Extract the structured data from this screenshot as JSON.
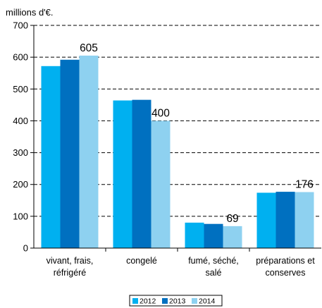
{
  "chart_data": {
    "type": "bar",
    "ylabel": "millions d'€.",
    "ylim": [
      0,
      700
    ],
    "yticks": [
      0,
      100,
      200,
      300,
      400,
      500,
      600,
      700
    ],
    "grid": true,
    "legend_position": "bottom",
    "categories": [
      [
        "vivant, frais,",
        "réfrigéré"
      ],
      [
        "congelé"
      ],
      [
        "fumé, séché,",
        "salé"
      ],
      [
        "préparations et",
        "conserves"
      ]
    ],
    "series": [
      {
        "name": "2012",
        "color": "#00b0f0",
        "values": [
          572,
          464,
          80,
          174
        ]
      },
      {
        "name": "2013",
        "color": "#0070c0",
        "values": [
          592,
          466,
          76,
          177
        ]
      },
      {
        "name": "2014",
        "color": "#8ed1f0",
        "values": [
          605,
          400,
          69,
          176
        ]
      }
    ],
    "data_labels": [
      {
        "series": 2,
        "category": 0,
        "text": "605"
      },
      {
        "series": 2,
        "category": 1,
        "text": "400"
      },
      {
        "series": 2,
        "category": 2,
        "text": "69"
      },
      {
        "series": 2,
        "category": 3,
        "text": "176"
      }
    ]
  }
}
